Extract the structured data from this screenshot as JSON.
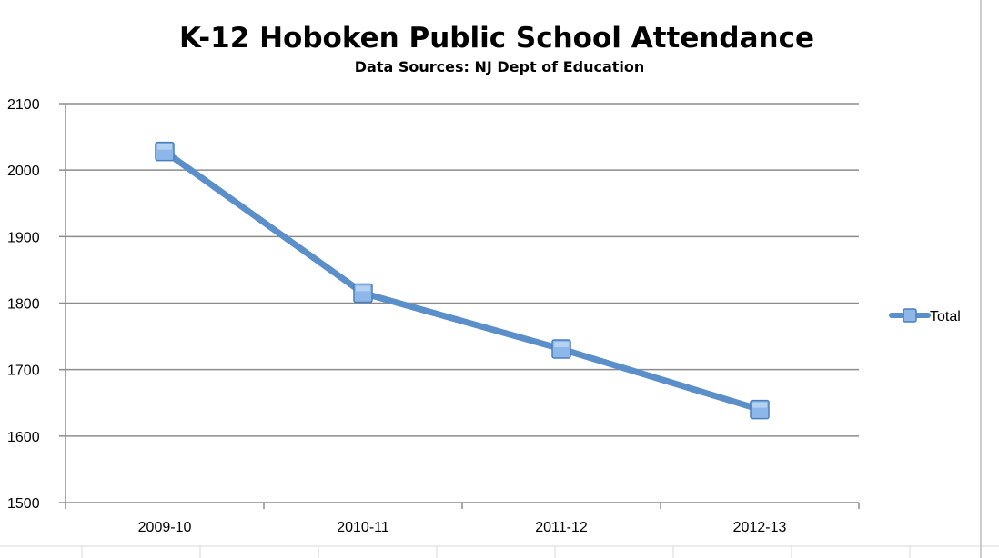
{
  "chart_data": {
    "type": "line",
    "title": "K-12 Hoboken Public School Attendance",
    "subtitle": "Data Sources: NJ Dept of Education",
    "categories": [
      "2009-10",
      "2010-11",
      "2011-12",
      "2012-13"
    ],
    "series": [
      {
        "name": "Total",
        "values": [
          2028,
          1815,
          1731,
          1640
        ]
      }
    ],
    "ylim": [
      1500,
      2100
    ],
    "yticks": [
      1500,
      1600,
      1700,
      1800,
      1900,
      2000,
      2100
    ],
    "grid": true,
    "legend_position": "right",
    "colors": {
      "line": "#5b8fc9",
      "marker_fill": "#8db7e8",
      "marker_stroke": "#4a7fbf",
      "grid": "#8c8c8c",
      "sheet_grid": "#d9d9d9"
    }
  }
}
